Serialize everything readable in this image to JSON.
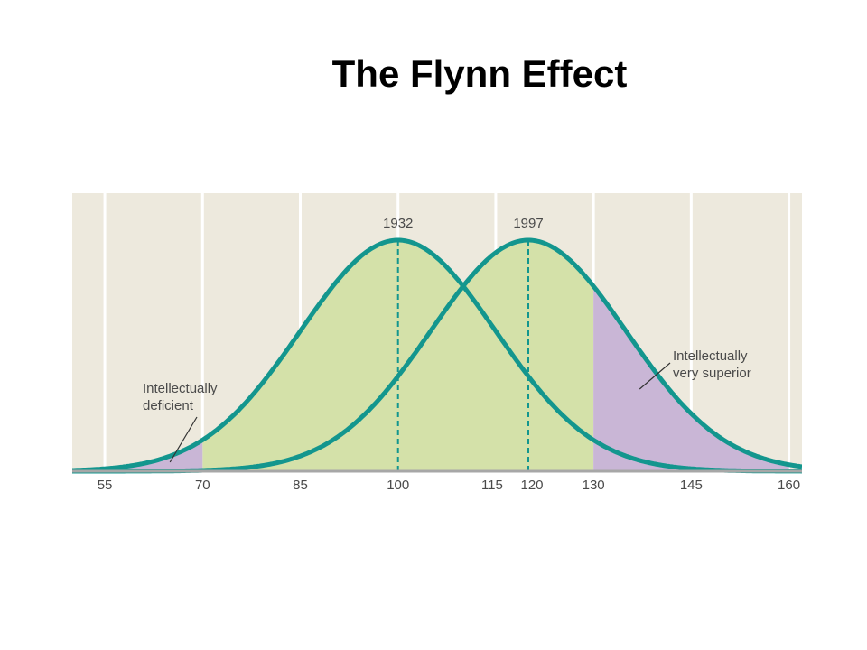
{
  "title": "The Flynn Effect",
  "colors": {
    "panel": "#ede9dd",
    "grid": "#ffffff",
    "curve": "#13968e",
    "fill_green": "#d4e1a9",
    "fill_purple": "#c9b6d6",
    "axis": "#a7a7a7",
    "text": "#4a4a4a"
  },
  "chart_data": {
    "type": "area",
    "title": "",
    "xlabel": "",
    "ylabel": "",
    "xlim": [
      50,
      162
    ],
    "x_ticks": [
      55,
      70,
      85,
      100,
      115,
      120,
      130,
      145,
      160
    ],
    "grid_lines_x": [
      55,
      70,
      85,
      100,
      115,
      130,
      145,
      160
    ],
    "grid": true,
    "series": [
      {
        "name": "1932",
        "mean": 100,
        "sd": 15
      },
      {
        "name": "1997",
        "mean": 120,
        "sd": 15
      }
    ],
    "shaded_regions": [
      {
        "from": 70,
        "to": 130,
        "color": "green"
      },
      {
        "from": 55,
        "to": 70,
        "color": "purple"
      },
      {
        "from": 130,
        "to": 160,
        "color": "purple"
      }
    ],
    "annotations": [
      {
        "text_lines": [
          "Intellectually",
          "deficient"
        ],
        "points_to_x": 65
      },
      {
        "text_lines": [
          "Intellectually",
          "very superior"
        ],
        "points_to_x": 135
      }
    ]
  }
}
